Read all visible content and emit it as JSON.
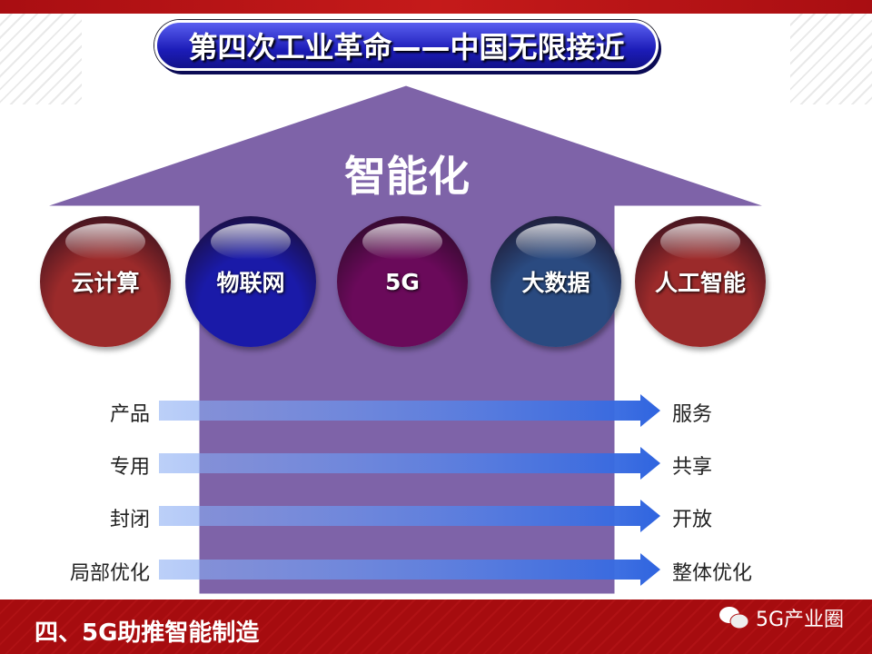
{
  "title": "第四次工业革命——中国无限接近",
  "arrow_label": "智能化",
  "spheres": [
    {
      "label": "云计算",
      "color": "#9b2a2a"
    },
    {
      "label": "物联网",
      "color": "#1a1aa8"
    },
    {
      "label": "5G",
      "color": "#6a0a5a"
    },
    {
      "label": "大数据",
      "color": "#2a4a80"
    },
    {
      "label": "人工智能",
      "color": "#9b2a2a"
    }
  ],
  "transitions": [
    {
      "from": "产品",
      "to": "服务"
    },
    {
      "from": "专用",
      "to": "共享"
    },
    {
      "from": "封闭",
      "to": "开放"
    },
    {
      "from": "局部优化",
      "to": "整体优化"
    }
  ],
  "footer": {
    "section": "四、5G助推智能制造",
    "watermark": "5G产业圈",
    "watermark_icon": "wechat-icon"
  },
  "colors": {
    "arrow": "#7e63a8",
    "banner": "#a90e12",
    "flow_arrow": "#3a6fe0"
  }
}
